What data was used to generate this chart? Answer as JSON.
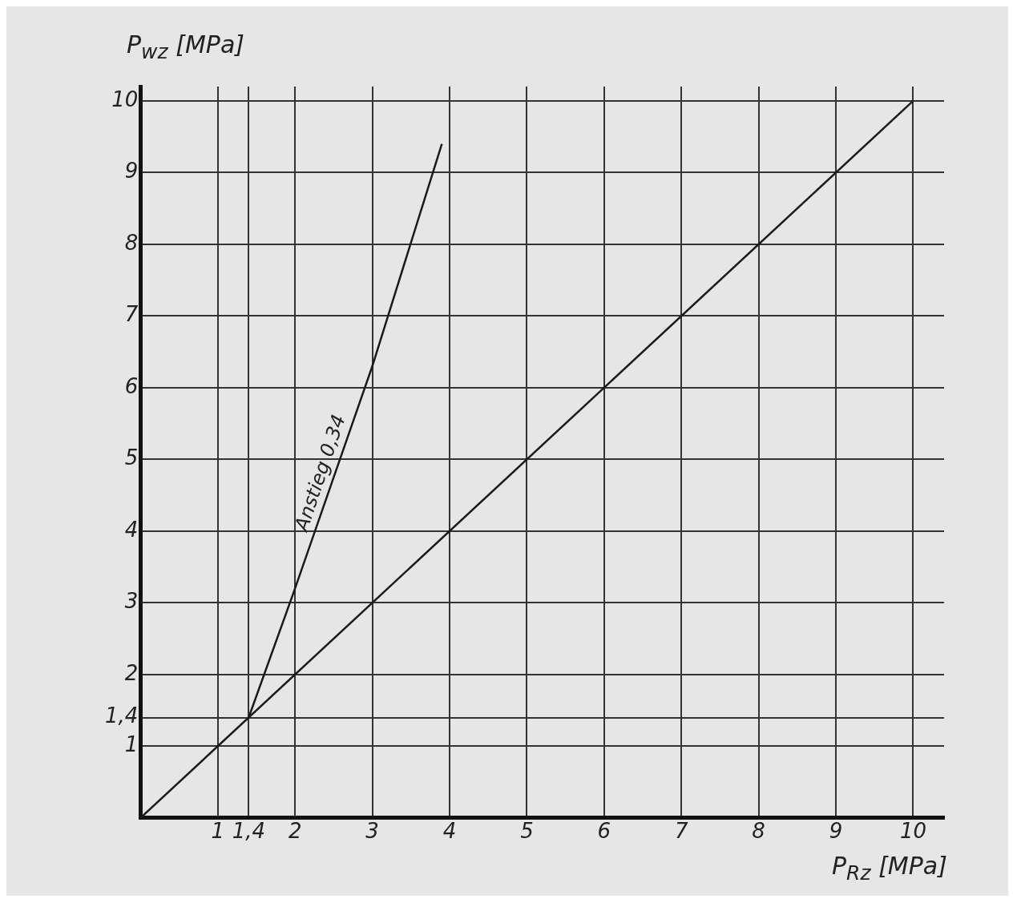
{
  "chart_data": {
    "type": "line",
    "xlabel": "P$_{Rz}$ [MPa]",
    "ylabel": "P$_{wz}$ [MPa]",
    "xlim": [
      0,
      10.4
    ],
    "ylim": [
      0,
      10.2
    ],
    "xticks": [
      1,
      {
        "value": 1.4,
        "label": "1,4"
      },
      2,
      3,
      4,
      5,
      6,
      7,
      8,
      9,
      10
    ],
    "yticks": [
      1,
      {
        "value": 1.4,
        "label": "1,4"
      },
      2,
      3,
      4,
      5,
      6,
      7,
      8,
      9,
      10
    ],
    "series": [
      {
        "color": "#1a1a1a",
        "x": [
          0,
          10
        ],
        "values": [
          0,
          10
        ]
      },
      {
        "color": "#1a1a1a",
        "x": [
          1.4,
          2,
          3,
          3.9
        ],
        "values": [
          1.4,
          3.2,
          6.3,
          9.4
        ]
      }
    ],
    "annotations": [
      "Anstieg 0,34"
    ],
    "grid": true,
    "legend": false,
    "marker": "none",
    "line_style": "solid"
  }
}
